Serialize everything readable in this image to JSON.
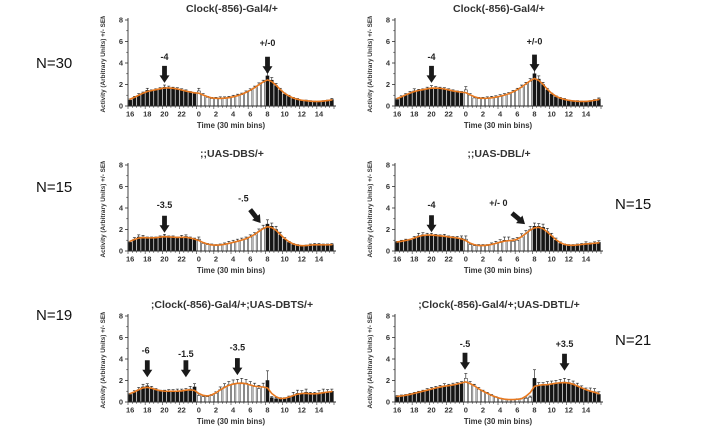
{
  "figure": {
    "background": "#ffffff"
  },
  "n_labels": {
    "left": [
      "N=30",
      "N=15",
      "N=19"
    ],
    "right": [
      "N=15",
      "N=21"
    ]
  },
  "axes": {
    "y_title": "Activity (Arbitrary Units) +/- SEM",
    "x_title": "Time (30 min bins)",
    "y_max": 8,
    "y_ticks": [
      0,
      2,
      4,
      6,
      8
    ],
    "y_minor_ticks": [
      1,
      3,
      5,
      7
    ],
    "x_tick_labels": [
      "16",
      "18",
      "20",
      "22",
      "0",
      "2",
      "4",
      "6",
      "8",
      "10",
      "12",
      "14"
    ],
    "bin_minutes": 30,
    "start_hour": 16,
    "bins": 48
  },
  "style": {
    "bar_black": "#151515",
    "bar_white": "#ffffff",
    "curve_orange": "#E8791F",
    "axis": "#2e2e2e",
    "text": "#333333",
    "arrow": "#1a1a1a",
    "bar_fill_segments": [
      {
        "from_bin": 0,
        "to_bin": 15,
        "fill": "black"
      },
      {
        "from_bin": 16,
        "to_bin": 31,
        "fill": "white"
      },
      {
        "from_bin": 32,
        "to_bin": 47,
        "fill": "black"
      }
    ]
  },
  "chart_data": [
    {
      "type": "bar",
      "title": "Clock(-856)-Gal4/+",
      "n_label": "N=30",
      "values": [
        0.55,
        0.8,
        1.0,
        1.2,
        1.45,
        1.4,
        1.5,
        1.6,
        1.75,
        1.7,
        1.65,
        1.6,
        1.5,
        1.4,
        1.25,
        1.15,
        1.4,
        1.0,
        0.8,
        0.7,
        0.7,
        0.7,
        0.7,
        0.75,
        0.85,
        0.95,
        1.05,
        1.25,
        1.45,
        1.7,
        1.95,
        2.2,
        2.8,
        2.4,
        1.9,
        1.5,
        1.1,
        0.9,
        0.7,
        0.6,
        0.5,
        0.5,
        0.45,
        0.4,
        0.4,
        0.45,
        0.5,
        0.6
      ],
      "sem": [
        0.1,
        0.1,
        0.15,
        0.1,
        0.2,
        0.1,
        0.1,
        0.1,
        0.2,
        0.15,
        0.1,
        0.1,
        0.1,
        0.1,
        0.1,
        0.1,
        0.25,
        0.15,
        0.1,
        0.1,
        0.1,
        0.15,
        0.15,
        0.15,
        0.15,
        0.15,
        0.15,
        0.15,
        0.15,
        0.15,
        0.2,
        0.2,
        0.35,
        0.25,
        0.2,
        0.15,
        0.1,
        0.1,
        0.1,
        0.1,
        0.05,
        0.05,
        0.05,
        0.05,
        0.05,
        0.05,
        0.05,
        0.1
      ],
      "arrows": [
        {
          "label": "-4",
          "x": 20,
          "tip_y": 2.15,
          "label_x": 20,
          "label_y": 4.3,
          "angle": 0
        },
        {
          "label": "+/-0",
          "x": 8,
          "tip_y": 3.0,
          "label_x": 8,
          "label_y": 5.6,
          "angle": 0
        }
      ]
    },
    {
      "type": "bar",
      "title": "Clock(-856)-Gal4/+",
      "n_label": "",
      "values": [
        0.6,
        0.85,
        1.05,
        1.2,
        1.4,
        1.45,
        1.5,
        1.6,
        1.7,
        1.7,
        1.65,
        1.6,
        1.5,
        1.4,
        1.3,
        1.2,
        1.5,
        1.0,
        0.75,
        0.7,
        0.7,
        0.7,
        0.75,
        0.8,
        0.9,
        1.0,
        1.1,
        1.3,
        1.5,
        1.75,
        2.0,
        2.3,
        3.0,
        2.5,
        2.0,
        1.5,
        1.1,
        0.85,
        0.7,
        0.6,
        0.5,
        0.45,
        0.45,
        0.4,
        0.4,
        0.45,
        0.5,
        0.65
      ],
      "sem": [
        0.1,
        0.1,
        0.1,
        0.15,
        0.2,
        0.1,
        0.1,
        0.15,
        0.2,
        0.1,
        0.1,
        0.1,
        0.1,
        0.1,
        0.1,
        0.15,
        0.3,
        0.15,
        0.1,
        0.1,
        0.1,
        0.15,
        0.15,
        0.15,
        0.15,
        0.15,
        0.15,
        0.15,
        0.15,
        0.2,
        0.2,
        0.25,
        0.45,
        0.3,
        0.2,
        0.15,
        0.1,
        0.1,
        0.1,
        0.1,
        0.05,
        0.05,
        0.05,
        0.05,
        0.05,
        0.05,
        0.1,
        0.1
      ],
      "arrows": [
        {
          "label": "-4",
          "x": 20,
          "tip_y": 2.15,
          "label_x": 20,
          "label_y": 4.3,
          "angle": 0
        },
        {
          "label": "+/-0",
          "x": 8,
          "tip_y": 3.2,
          "label_x": 8,
          "label_y": 5.7,
          "angle": 0
        }
      ]
    },
    {
      "type": "bar",
      "title": ";;UAS-DBS/+",
      "n_label": "N=15",
      "values": [
        0.8,
        1.1,
        1.3,
        1.3,
        1.2,
        1.2,
        1.2,
        1.3,
        1.4,
        1.3,
        1.3,
        1.2,
        1.3,
        1.35,
        1.2,
        1.1,
        1.1,
        0.7,
        0.6,
        0.55,
        0.5,
        0.55,
        0.6,
        0.7,
        0.8,
        0.9,
        1.0,
        1.1,
        1.3,
        1.5,
        1.8,
        2.1,
        2.5,
        2.3,
        2.0,
        1.5,
        1.1,
        0.8,
        0.6,
        0.5,
        0.45,
        0.5,
        0.55,
        0.6,
        0.6,
        0.55,
        0.55,
        0.6
      ],
      "sem": [
        0.1,
        0.15,
        0.2,
        0.15,
        0.1,
        0.1,
        0.1,
        0.1,
        0.15,
        0.1,
        0.1,
        0.1,
        0.15,
        0.15,
        0.1,
        0.1,
        0.2,
        0.1,
        0.1,
        0.1,
        0.1,
        0.1,
        0.15,
        0.2,
        0.2,
        0.2,
        0.2,
        0.2,
        0.2,
        0.2,
        0.25,
        0.3,
        0.4,
        0.3,
        0.3,
        0.25,
        0.15,
        0.1,
        0.1,
        0.1,
        0.05,
        0.05,
        0.1,
        0.1,
        0.1,
        0.1,
        0.1,
        0.1
      ],
      "arrows": [
        {
          "label": "-3.5",
          "x": 20,
          "tip_y": 1.7,
          "label_x": 20,
          "label_y": 4.0,
          "angle": 0
        },
        {
          "label": "-.5",
          "x": 7.2,
          "tip_y": 2.6,
          "label_x": 5.2,
          "label_y": 4.6,
          "angle": -38
        }
      ]
    },
    {
      "type": "bar",
      "title": ";;UAS-DBL/+",
      "n_label": "N=15",
      "values": [
        0.8,
        0.9,
        1.0,
        1.0,
        1.2,
        1.4,
        1.5,
        1.5,
        1.5,
        1.45,
        1.4,
        1.4,
        1.3,
        1.25,
        1.2,
        1.2,
        1.1,
        0.6,
        0.5,
        0.5,
        0.5,
        0.5,
        0.6,
        0.7,
        0.8,
        1.0,
        1.0,
        0.9,
        1.0,
        1.3,
        1.6,
        2.0,
        2.3,
        2.3,
        2.2,
        1.8,
        1.4,
        1.0,
        0.7,
        0.55,
        0.5,
        0.5,
        0.55,
        0.6,
        0.7,
        0.65,
        0.7,
        0.8
      ],
      "sem": [
        0.1,
        0.1,
        0.1,
        0.1,
        0.15,
        0.25,
        0.2,
        0.15,
        0.15,
        0.1,
        0.1,
        0.15,
        0.1,
        0.1,
        0.15,
        0.2,
        0.3,
        0.1,
        0.1,
        0.1,
        0.1,
        0.1,
        0.15,
        0.2,
        0.25,
        0.3,
        0.3,
        0.25,
        0.25,
        0.3,
        0.3,
        0.3,
        0.3,
        0.25,
        0.3,
        0.3,
        0.25,
        0.2,
        0.15,
        0.1,
        0.1,
        0.1,
        0.1,
        0.1,
        0.15,
        0.1,
        0.15,
        0.15
      ],
      "arrows": [
        {
          "label": "-4",
          "x": 20,
          "tip_y": 1.75,
          "label_x": 20,
          "label_y": 4.0,
          "angle": 0
        },
        {
          "label": "+/- 0",
          "x": 6.9,
          "tip_y": 2.5,
          "label_x": 3.8,
          "label_y": 4.2,
          "angle": -50
        }
      ]
    },
    {
      "type": "bar",
      "title": ";Clock(-856)-Gal4/+;UAS-DBTS/+",
      "n_label": "N=19",
      "values": [
        0.7,
        0.9,
        1.15,
        1.4,
        1.5,
        1.3,
        1.1,
        1.0,
        1.0,
        1.0,
        1.0,
        1.0,
        1.0,
        1.05,
        1.2,
        1.4,
        0.6,
        0.5,
        0.5,
        0.6,
        0.8,
        1.15,
        1.4,
        1.6,
        1.7,
        1.75,
        1.8,
        1.75,
        1.6,
        1.45,
        1.25,
        1.4,
        2.0,
        0.4,
        0.3,
        0.3,
        0.3,
        0.4,
        0.6,
        0.8,
        0.8,
        0.9,
        0.7,
        0.7,
        0.8,
        0.9,
        0.9,
        1.0
      ],
      "sem": [
        0.1,
        0.15,
        0.2,
        0.25,
        0.2,
        0.15,
        0.15,
        0.1,
        0.1,
        0.15,
        0.15,
        0.2,
        0.2,
        0.2,
        0.25,
        0.3,
        0.15,
        0.1,
        0.1,
        0.1,
        0.15,
        0.25,
        0.3,
        0.3,
        0.35,
        0.35,
        0.4,
        0.35,
        0.3,
        0.3,
        0.3,
        0.35,
        0.9,
        0.1,
        0.1,
        0.1,
        0.1,
        0.15,
        0.3,
        0.3,
        0.25,
        0.3,
        0.2,
        0.2,
        0.25,
        0.3,
        0.25,
        0.2
      ],
      "arrows": [
        {
          "label": "-6",
          "x": 18,
          "tip_y": 2.3,
          "label_x": 17.8,
          "label_y": 4.5,
          "angle": 0
        },
        {
          "label": "-1.5",
          "x": 22.5,
          "tip_y": 2.3,
          "label_x": 22.5,
          "label_y": 4.2,
          "angle": 0
        },
        {
          "label": "-3.5",
          "x": 4.5,
          "tip_y": 2.5,
          "label_x": 4.5,
          "label_y": 4.8,
          "angle": 0
        }
      ]
    },
    {
      "type": "bar",
      "title": ";Clock(-856)-Gal4/+;UAS-DBTL/+",
      "n_label": "N=21",
      "values": [
        0.5,
        0.55,
        0.6,
        0.7,
        0.8,
        0.9,
        1.0,
        1.1,
        1.2,
        1.3,
        1.4,
        1.5,
        1.5,
        1.6,
        1.6,
        1.7,
        2.2,
        1.7,
        1.5,
        1.2,
        1.0,
        0.8,
        0.6,
        0.45,
        0.3,
        0.25,
        0.2,
        0.2,
        0.25,
        0.3,
        0.35,
        0.45,
        2.2,
        1.5,
        1.5,
        1.6,
        1.7,
        1.75,
        1.8,
        1.85,
        1.8,
        1.7,
        1.5,
        1.3,
        1.1,
        1.0,
        0.95,
        0.7
      ],
      "sem": [
        0.1,
        0.1,
        0.1,
        0.1,
        0.1,
        0.1,
        0.1,
        0.15,
        0.15,
        0.15,
        0.15,
        0.2,
        0.15,
        0.15,
        0.2,
        0.2,
        0.45,
        0.2,
        0.15,
        0.15,
        0.1,
        0.1,
        0.1,
        0.05,
        0.05,
        0.05,
        0.05,
        0.05,
        0.05,
        0.05,
        0.1,
        0.1,
        0.8,
        0.3,
        0.3,
        0.3,
        0.25,
        0.25,
        0.3,
        0.35,
        0.3,
        0.25,
        0.25,
        0.2,
        0.2,
        0.3,
        0.3,
        0.25
      ],
      "arrows": [
        {
          "label": "-.5",
          "x": 23.9,
          "tip_y": 3.0,
          "label_x": 23.9,
          "label_y": 5.1,
          "angle": 0
        },
        {
          "label": "+3.5",
          "x": 11.5,
          "tip_y": 2.9,
          "label_x": 11.5,
          "label_y": 5.1,
          "angle": 0
        }
      ]
    }
  ]
}
